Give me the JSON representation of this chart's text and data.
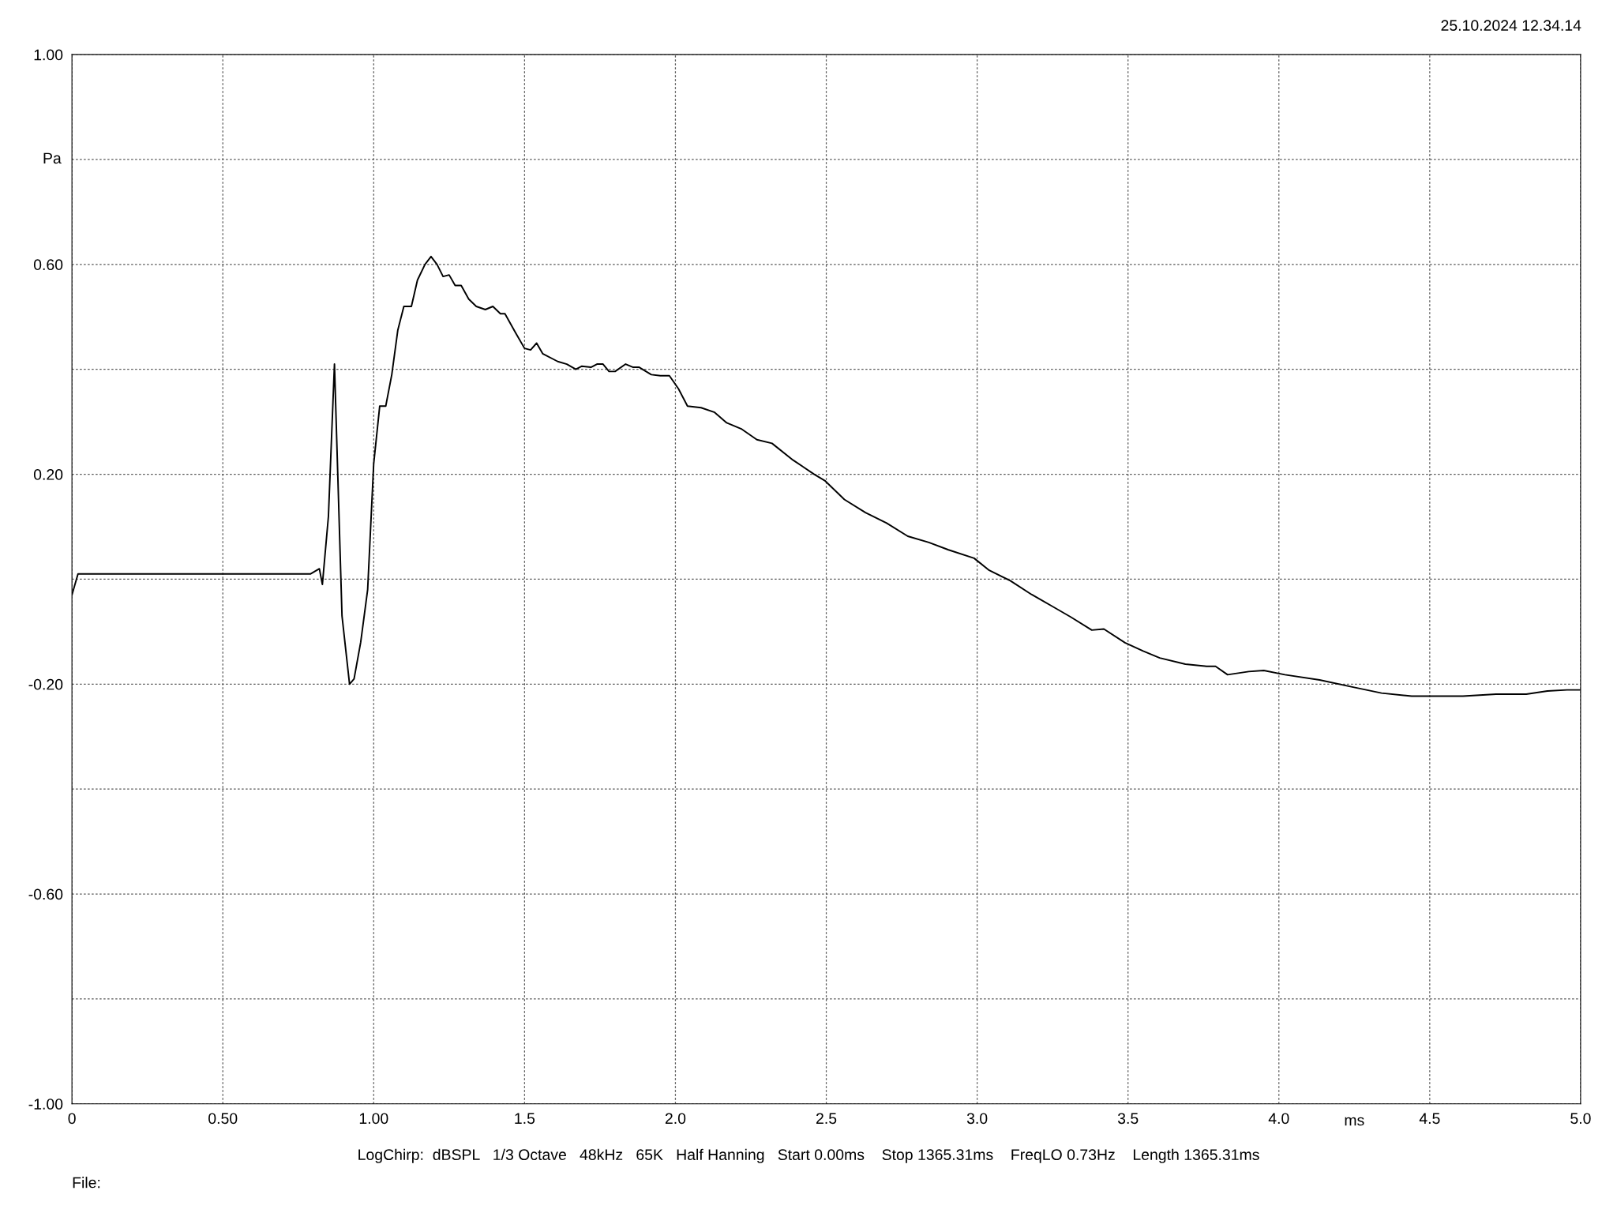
{
  "chart_data": {
    "type": "line",
    "xlabel": "ms",
    "ylabel": "Pa",
    "xlim": [
      0,
      5.0
    ],
    "ylim": [
      -1.0,
      1.0
    ],
    "xticks": [
      0,
      {
        "value": 0.5,
        "label": "0.50"
      },
      {
        "value": 1.0,
        "label": "1.00"
      },
      1.5,
      {
        "value": 2.0,
        "label": "2.0"
      },
      2.5,
      {
        "value": 3.0,
        "label": "3.0"
      },
      3.5,
      {
        "value": 4.0,
        "label": "4.0"
      },
      4.5,
      {
        "value": 5.0,
        "label": "5.0"
      }
    ],
    "yticks": [
      {
        "value": -1.0,
        "label": "-1.00"
      },
      {
        "value": -0.8,
        "label": null
      },
      {
        "value": -0.6,
        "label": "-0.60"
      },
      {
        "value": -0.4,
        "label": null
      },
      {
        "value": -0.2,
        "label": "-0.20"
      },
      {
        "value": 0,
        "label": null
      },
      {
        "value": 0.2,
        "label": "0.20"
      },
      {
        "value": 0.4,
        "label": null
      },
      {
        "value": 0.6,
        "label": "0.60"
      },
      {
        "value": 0.8,
        "label": null
      },
      {
        "value": 1.0,
        "label": "1.00"
      }
    ],
    "grid": true,
    "line_style": "solid",
    "marker": "none",
    "annotations": [
      "25.10.2024 12.34.14",
      "LogChirp:  dBSPL   1/3 Octave   48kHz   65K   Half Hanning   Start 0.00ms    Stop 1365.31ms    FreqLO 0.73Hz    Length 1365.31ms",
      "File:"
    ],
    "series": [
      {
        "color": "#000000",
        "x": [
          0,
          0.02,
          0.07,
          0.79,
          0.82,
          0.83,
          0.85,
          0.87,
          0.895,
          0.92,
          0.935,
          0.957,
          0.98,
          1.0,
          1.02,
          1.04,
          1.06,
          1.08,
          1.1,
          1.125,
          1.145,
          1.17,
          1.19,
          1.21,
          1.23,
          1.25,
          1.27,
          1.29,
          1.315,
          1.34,
          1.37,
          1.395,
          1.42,
          1.435,
          1.47,
          1.5,
          1.52,
          1.54,
          1.56,
          1.61,
          1.64,
          1.67,
          1.69,
          1.72,
          1.74,
          1.76,
          1.78,
          1.8,
          1.835,
          1.86,
          1.88,
          1.92,
          1.95,
          1.98,
          2.01,
          2.04,
          2.085,
          2.13,
          2.17,
          2.22,
          2.27,
          2.32,
          2.39,
          2.46,
          2.495,
          2.56,
          2.63,
          2.7,
          2.77,
          2.84,
          2.905,
          2.99,
          3.04,
          3.11,
          3.18,
          3.25,
          3.31,
          3.38,
          3.42,
          3.49,
          3.55,
          3.605,
          3.69,
          3.76,
          3.79,
          3.83,
          3.9,
          3.95,
          4.02,
          4.135,
          4.24,
          4.34,
          4.44,
          4.61,
          4.72,
          4.82,
          4.89,
          4.955,
          5.0
        ],
        "values": [
          -0.03,
          0.01,
          0.01,
          0.01,
          0.02,
          -0.01,
          0.12,
          0.41,
          -0.07,
          -0.2,
          -0.19,
          -0.12,
          -0.02,
          0.22,
          0.33,
          0.33,
          0.39,
          0.475,
          0.52,
          0.52,
          0.57,
          0.6,
          0.615,
          0.6,
          0.577,
          0.58,
          0.56,
          0.56,
          0.534,
          0.52,
          0.514,
          0.52,
          0.506,
          0.506,
          0.47,
          0.44,
          0.437,
          0.45,
          0.43,
          0.415,
          0.41,
          0.4,
          0.406,
          0.404,
          0.41,
          0.41,
          0.396,
          0.396,
          0.41,
          0.404,
          0.404,
          0.39,
          0.388,
          0.388,
          0.363,
          0.33,
          0.327,
          0.318,
          0.298,
          0.286,
          0.266,
          0.259,
          0.227,
          0.2,
          0.188,
          0.152,
          0.127,
          0.107,
          0.082,
          0.07,
          0.056,
          0.04,
          0.017,
          -0.003,
          -0.029,
          -0.052,
          -0.072,
          -0.097,
          -0.095,
          -0.121,
          -0.137,
          -0.15,
          -0.162,
          -0.166,
          -0.166,
          -0.182,
          -0.176,
          -0.174,
          -0.182,
          -0.192,
          -0.205,
          -0.217,
          -0.223,
          -0.223,
          -0.219,
          -0.219,
          -0.213,
          -0.211,
          -0.211
        ]
      }
    ]
  }
}
